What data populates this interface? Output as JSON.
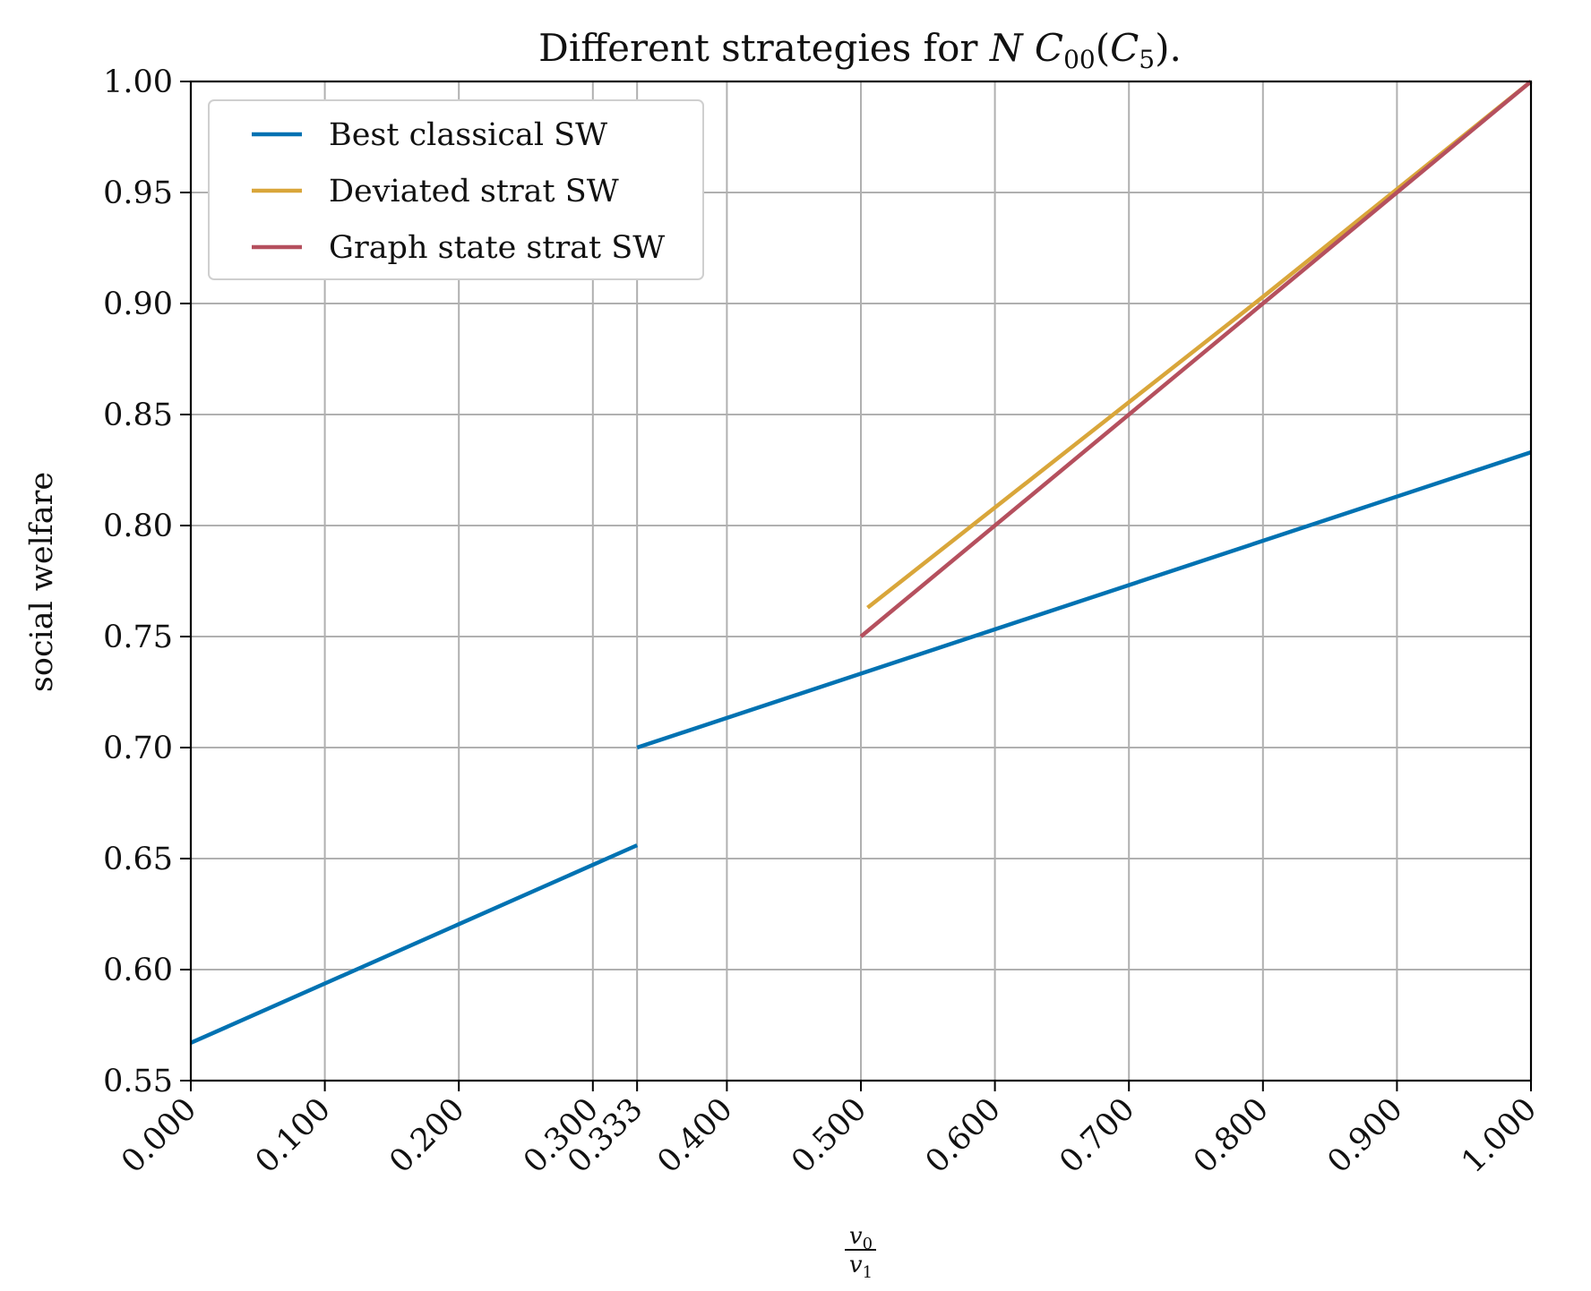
{
  "chart_data": {
    "type": "line",
    "title": "Different strategies for NC00(C5).",
    "title_parts": {
      "prefix": "Different strategies for ",
      "nc": "NC",
      "sub": "00",
      "open": "(",
      "c": "C",
      "c_sub": "5",
      "close": ").",
      "math_nc": "N C",
      "math_c": "C"
    },
    "xlabel": "v0/v1",
    "xlabel_parts": {
      "numerator_var": "v",
      "numerator_sub": "0",
      "denominator_var": "v",
      "denominator_sub": "1"
    },
    "ylabel": "social welfare",
    "xlim": [
      0.0,
      1.0
    ],
    "ylim": [
      0.55,
      1.0
    ],
    "grid": true,
    "legend_position": "top-left",
    "x_ticks": [
      0.0,
      0.1,
      0.2,
      0.3,
      0.333,
      0.4,
      0.5,
      0.6,
      0.7,
      0.8,
      0.9,
      1.0
    ],
    "x_tick_labels": [
      "0.000",
      "0.100",
      "0.200",
      "0.300",
      "0.333",
      "0.400",
      "0.500",
      "0.600",
      "0.700",
      "0.800",
      "0.900",
      "1.000"
    ],
    "y_ticks": [
      0.55,
      0.6,
      0.65,
      0.7,
      0.75,
      0.8,
      0.85,
      0.9,
      0.95,
      1.0
    ],
    "y_tick_labels": [
      "0.55",
      "0.60",
      "0.65",
      "0.70",
      "0.75",
      "0.80",
      "0.85",
      "0.90",
      "0.95",
      "1.00"
    ],
    "series": [
      {
        "name": "Best classical SW",
        "color": "#0072b2",
        "segments": [
          [
            [
              0.0,
              0.567
            ],
            [
              0.333,
              0.656
            ]
          ],
          [
            [
              0.333,
              0.7
            ],
            [
              1.0,
              0.833
            ]
          ]
        ]
      },
      {
        "name": "Deviated strat SW",
        "color": "#d9a63a",
        "segments": [
          [
            [
              0.505,
              0.763
            ],
            [
              0.8,
              0.903
            ],
            [
              1.0,
              1.0
            ]
          ]
        ]
      },
      {
        "name": "Graph state strat SW",
        "color": "#b5505e",
        "segments": [
          [
            [
              0.5,
              0.75
            ],
            [
              1.0,
              1.0
            ]
          ]
        ]
      }
    ]
  }
}
